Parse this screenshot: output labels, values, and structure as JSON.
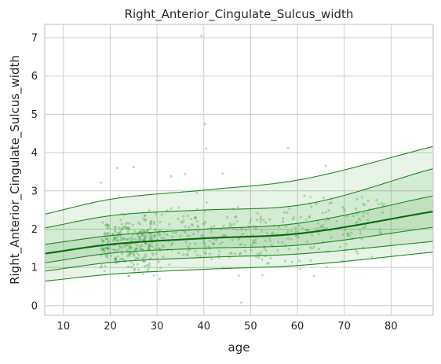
{
  "chart_data": {
    "type": "scatter",
    "title": "Right_Anterior_Cingulate_Sulcus_width",
    "xlabel": "age",
    "ylabel": "Right_Anterior_Cingulate_Sulcus_width",
    "xlim": [
      6,
      89
    ],
    "ylim": [
      -0.25,
      7.35
    ],
    "xticks": [
      10,
      20,
      30,
      40,
      50,
      60,
      70,
      80
    ],
    "yticks": [
      0,
      1,
      2,
      3,
      4,
      5,
      6,
      7
    ],
    "grid": true,
    "colors": {
      "line": "#1e8a1e",
      "median": "#0a6b0a",
      "band": "#2e9a2e",
      "points": "#3c9a3c",
      "grid": "#cccccc"
    },
    "centile_curves": [
      {
        "centile": "lowest",
        "x": [
          6,
          20,
          40,
          60,
          89
        ],
        "y": [
          0.64,
          0.82,
          0.95,
          1.05,
          1.4
        ]
      },
      {
        "centile": "low",
        "x": [
          6,
          20,
          40,
          60,
          89
        ],
        "y": [
          0.9,
          1.13,
          1.26,
          1.35,
          1.68
        ]
      },
      {
        "centile": "lower-mid",
        "x": [
          6,
          20,
          40,
          60,
          89
        ],
        "y": [
          1.12,
          1.37,
          1.5,
          1.58,
          2.05
        ]
      },
      {
        "centile": "median",
        "x": [
          6,
          20,
          40,
          60,
          89
        ],
        "y": [
          1.36,
          1.6,
          1.76,
          1.88,
          2.46
        ]
      },
      {
        "centile": "upper-mid",
        "x": [
          6,
          20,
          40,
          60,
          89
        ],
        "y": [
          1.6,
          1.83,
          2.0,
          2.15,
          2.87
        ]
      },
      {
        "centile": "high",
        "x": [
          6,
          20,
          40,
          60,
          89
        ],
        "y": [
          2.03,
          2.35,
          2.5,
          2.62,
          3.58
        ]
      },
      {
        "centile": "highest",
        "x": [
          6,
          20,
          40,
          60,
          89
        ],
        "y": [
          2.39,
          2.78,
          3.02,
          3.28,
          4.16
        ]
      }
    ],
    "outliers": [
      {
        "x": 39.5,
        "y": 7.05
      },
      {
        "x": 40.3,
        "y": 4.75
      },
      {
        "x": 40.5,
        "y": 4.1
      },
      {
        "x": 58.0,
        "y": 4.12
      },
      {
        "x": 25.0,
        "y": 3.62
      },
      {
        "x": 21.5,
        "y": 3.6
      },
      {
        "x": 36.0,
        "y": 3.44
      },
      {
        "x": 44.0,
        "y": 3.45
      },
      {
        "x": 66.0,
        "y": 3.65
      },
      {
        "x": 33.0,
        "y": 3.38
      },
      {
        "x": 18.0,
        "y": 3.22
      },
      {
        "x": 48.0,
        "y": 0.08
      },
      {
        "x": 52.5,
        "y": 0.8
      },
      {
        "x": 30.5,
        "y": 0.7
      },
      {
        "x": 24.0,
        "y": 0.78
      }
    ]
  }
}
